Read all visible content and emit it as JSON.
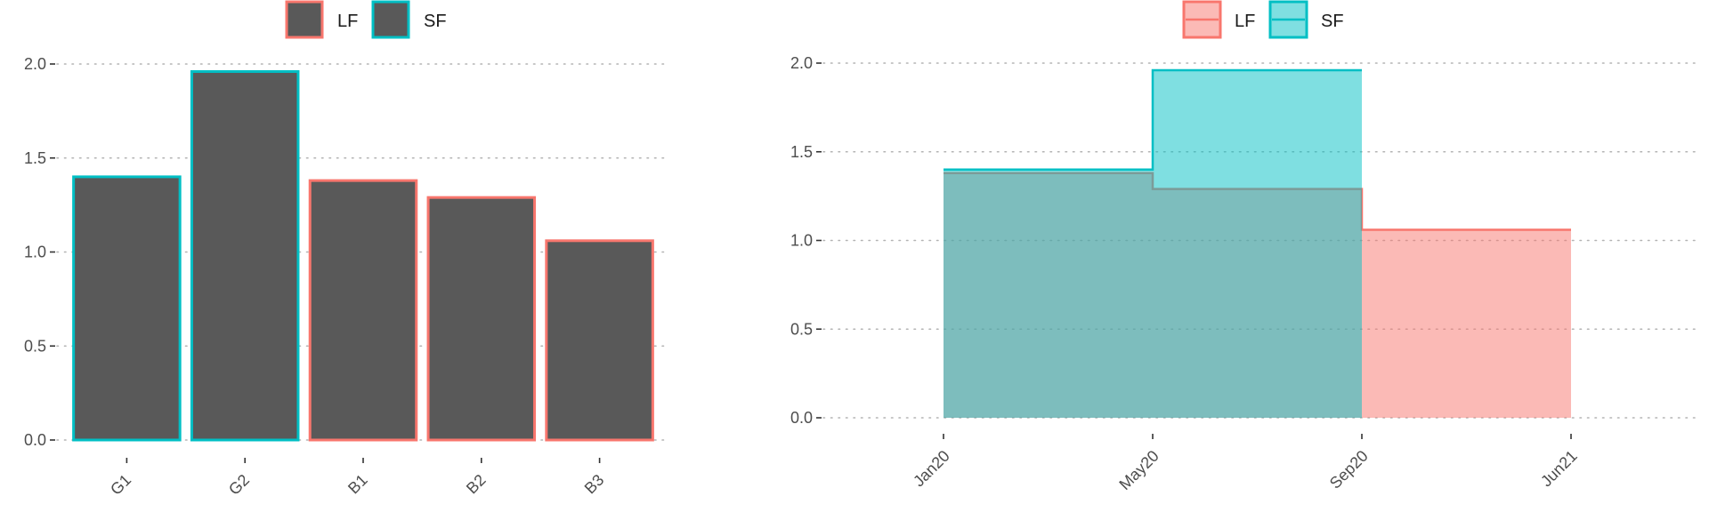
{
  "colors": {
    "LF": "#F8766D",
    "SF": "#00BFC4",
    "bar_fill": "#595959",
    "step_overlap_fill": "#7FBCBA"
  },
  "chart_data": [
    {
      "type": "bar",
      "title": "",
      "xlabel": "",
      "ylabel": "",
      "categories": [
        "G1",
        "G2",
        "B1",
        "B2",
        "B3"
      ],
      "values": [
        1.4,
        1.96,
        1.38,
        1.29,
        1.06
      ],
      "outline_group": [
        "SF",
        "SF",
        "LF",
        "LF",
        "LF"
      ],
      "ylim": [
        0,
        2.0
      ],
      "yticks": [
        0.0,
        0.5,
        1.0,
        1.5,
        2.0
      ],
      "ytick_labels": [
        "0.0",
        "0.5",
        "1.0",
        "1.5",
        "2.0"
      ],
      "legend": [
        "LF",
        "SF"
      ],
      "legend_position": "top",
      "grid": "horizontal dotted"
    },
    {
      "type": "area",
      "title": "",
      "xlabel": "",
      "ylabel": "",
      "x_ticks": [
        "Jan20",
        "May20",
        "Sep20",
        "Jun21"
      ],
      "series": [
        {
          "name": "LF",
          "steps": [
            {
              "from": "Jan20",
              "to": "May20",
              "value": 1.38
            },
            {
              "from": "May20",
              "to": "Sep20",
              "value": 1.29
            },
            {
              "from": "Sep20",
              "to": "Jun21",
              "value": 1.06
            }
          ]
        },
        {
          "name": "SF",
          "steps": [
            {
              "from": "Jan20",
              "to": "May20",
              "value": 1.4
            },
            {
              "from": "May20",
              "to": "Sep20",
              "value": 1.96
            }
          ]
        }
      ],
      "ylim": [
        0,
        2.0
      ],
      "yticks": [
        0.0,
        0.5,
        1.0,
        1.5,
        2.0
      ],
      "ytick_labels": [
        "0.0",
        "0.5",
        "1.0",
        "1.5",
        "2.0"
      ],
      "legend": [
        "LF",
        "SF"
      ],
      "legend_position": "top",
      "grid": "horizontal dotted"
    }
  ]
}
